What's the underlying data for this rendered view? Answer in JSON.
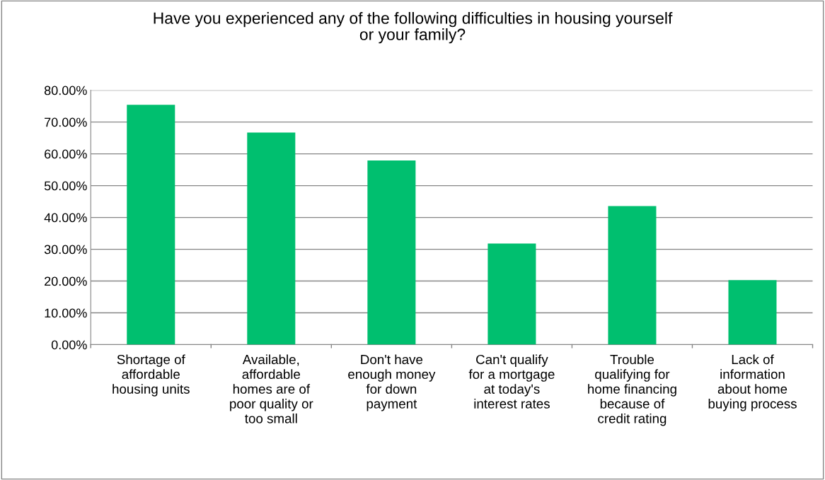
{
  "chart_data": {
    "type": "bar",
    "title": "Have you experienced any of the following difficulties in housing yourself\nor your family?",
    "categories": [
      "Shortage of\naffordable\nhousing units",
      "Available,\naffordable\nhomes are of\npoor quality or\ntoo small",
      "Don't have\nenough money\nfor down\npayment",
      "Can't qualify\nfor a mortgage\nat today's\ninterest rates",
      "Trouble\nqualifying for\nhome financing\nbecause of\ncredit rating",
      "Lack of\ninformation\nabout home\nbuying process"
    ],
    "values": [
      75.4,
      66.7,
      57.9,
      31.8,
      43.6,
      20.3
    ],
    "color": "#00bf6f",
    "ylim": [
      0,
      80
    ],
    "yticks": [
      {
        "value": 0,
        "label": "0.00%"
      },
      {
        "value": 10,
        "label": "10.00%"
      },
      {
        "value": 20,
        "label": "20.00%"
      },
      {
        "value": 30,
        "label": "30.00%"
      },
      {
        "value": 40,
        "label": "40.00%"
      },
      {
        "value": 50,
        "label": "50.00%"
      },
      {
        "value": 60,
        "label": "60.00%"
      },
      {
        "value": 70,
        "label": "70.00%"
      },
      {
        "value": 80,
        "label": "80.00%"
      }
    ],
    "grid": "y"
  }
}
